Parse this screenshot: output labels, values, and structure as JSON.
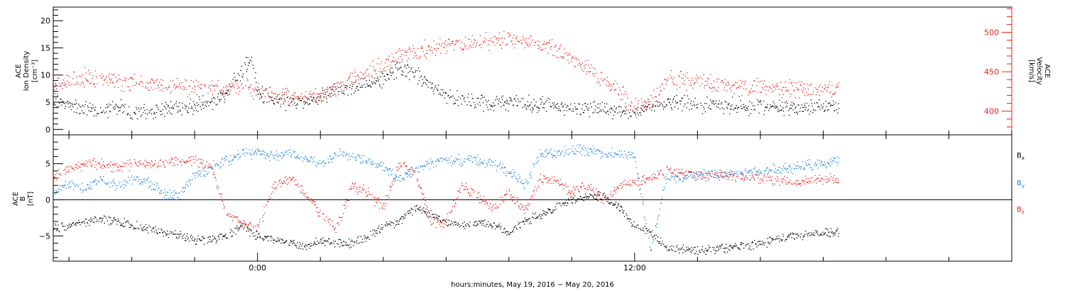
{
  "figure": {
    "xlabel": "hours:minutes, May 19, 2016 − May 20, 2016",
    "x_range_hours": [
      -6.5,
      24
    ],
    "x_major_ticks": [
      {
        "label": "0:00",
        "hour": 0
      },
      {
        "label": "12:00",
        "hour": 12
      }
    ]
  },
  "chart_data": [
    {
      "type": "scatter",
      "panel": "top",
      "ylabel_left": [
        "ACE",
        "Ion Density",
        "[cm⁻³]"
      ],
      "ylabel_right": [
        "ACE",
        "Velocity",
        "[km/s]"
      ],
      "ylim_left": [
        -1,
        22.5
      ],
      "ylim_right": [
        370,
        532
      ],
      "yticks_left": [
        0,
        5,
        10,
        15,
        20
      ],
      "yticks_right": [
        400,
        450,
        500
      ],
      "series": [
        {
          "axis": "left",
          "color": "#000000",
          "x": [
            -6.5,
            -6.0,
            -5.5,
            -5.0,
            -4.5,
            -4.0,
            -3.5,
            -3.0,
            -2.5,
            -2.0,
            -1.5,
            -1.0,
            -0.5,
            -0.2,
            0.0,
            0.5,
            1.0,
            1.5,
            2.0,
            2.5,
            3.0,
            3.5,
            4.0,
            4.5,
            5.0,
            5.5,
            6.0,
            6.5,
            7.0,
            7.5,
            8.0,
            8.5,
            9.0,
            9.5,
            10.0,
            10.5,
            11.0,
            11.5,
            12.0,
            12.5,
            13.0,
            14.0,
            15.0,
            16.0,
            17.0,
            18.0,
            18.5
          ],
          "y": [
            6.0,
            4.5,
            4.0,
            3.5,
            4.0,
            3.5,
            3.5,
            4.0,
            4.0,
            4.5,
            5.0,
            6.5,
            11.0,
            13.0,
            7.0,
            5.5,
            5.0,
            5.0,
            6.0,
            7.0,
            7.5,
            8.5,
            9.5,
            11.0,
            10.5,
            8.0,
            6.0,
            5.5,
            5.0,
            5.0,
            5.0,
            5.0,
            4.5,
            4.5,
            4.0,
            4.0,
            4.0,
            3.5,
            3.5,
            4.0,
            5.0,
            4.5,
            4.5,
            4.3,
            4.2,
            4.3,
            4.5
          ]
        },
        {
          "axis": "right",
          "color": "#e8201a",
          "x": [
            -6.5,
            -6.0,
            -5.5,
            -5.0,
            -4.5,
            -4.0,
            -3.5,
            -3.0,
            -2.5,
            -2.0,
            -1.5,
            -1.0,
            -0.5,
            0.0,
            0.5,
            1.0,
            1.5,
            2.0,
            2.5,
            3.0,
            3.5,
            4.0,
            4.5,
            5.0,
            5.5,
            6.0,
            6.5,
            7.0,
            7.5,
            8.0,
            8.5,
            9.0,
            9.5,
            10.0,
            10.5,
            11.0,
            11.5,
            12.0,
            12.5,
            13.0,
            14.0,
            15.0,
            16.0,
            17.0,
            18.0,
            18.5
          ],
          "y": [
            430,
            440,
            443,
            440,
            437,
            437,
            433,
            432,
            430,
            430,
            428,
            430,
            432,
            425,
            420,
            420,
            418,
            422,
            430,
            440,
            450,
            460,
            470,
            475,
            480,
            485,
            485,
            488,
            490,
            492,
            490,
            485,
            478,
            465,
            455,
            440,
            425,
            405,
            410,
            440,
            438,
            433,
            430,
            428,
            427,
            426
          ]
        }
      ]
    },
    {
      "type": "scatter",
      "panel": "bottom",
      "ylabel_left": [
        "ACE",
        "B",
        "[nT]"
      ],
      "ylim": [
        -8.5,
        9.0
      ],
      "yticks": [
        -5,
        0,
        5
      ],
      "legend": [
        {
          "label": "B",
          "sub": "x",
          "color": "#000000"
        },
        {
          "label": "B",
          "sub": "y",
          "color": "#1a84e0"
        },
        {
          "label": "B",
          "sub": "z",
          "color": "#e8201a"
        }
      ],
      "series": [
        {
          "name": "Bx",
          "color": "#000000",
          "x": [
            -6.5,
            -6.0,
            -5.5,
            -5.0,
            -4.5,
            -4.0,
            -3.5,
            -3.0,
            -2.5,
            -2.0,
            -1.5,
            -1.0,
            -0.5,
            0.0,
            0.5,
            1.0,
            1.5,
            2.0,
            2.5,
            3.0,
            3.5,
            4.0,
            4.5,
            5.0,
            5.5,
            6.0,
            6.5,
            7.0,
            7.5,
            8.0,
            8.5,
            9.0,
            9.5,
            10.0,
            10.5,
            11.0,
            11.5,
            12.0,
            12.5,
            13.0,
            14.0,
            15.0,
            16.0,
            17.0,
            18.0,
            18.5
          ],
          "y": [
            -4.0,
            -3.5,
            -3.0,
            -2.5,
            -3.0,
            -3.5,
            -4.0,
            -4.5,
            -5.0,
            -5.5,
            -5.5,
            -5.0,
            -3.5,
            -5.0,
            -5.5,
            -6.0,
            -6.5,
            -5.5,
            -6.0,
            -6.0,
            -5.0,
            -3.5,
            -3.0,
            -1.0,
            -2.0,
            -3.0,
            -3.5,
            -3.0,
            -3.5,
            -4.5,
            -3.0,
            -2.0,
            -1.0,
            0.0,
            0.5,
            0.5,
            -1.0,
            -3.5,
            -4.5,
            -6.5,
            -7.0,
            -6.5,
            -6.0,
            -5.0,
            -4.5,
            -4.5
          ]
        },
        {
          "name": "By",
          "color": "#1a84e0",
          "x": [
            -6.5,
            -6.0,
            -5.5,
            -5.0,
            -4.5,
            -4.0,
            -3.5,
            -3.0,
            -2.5,
            -2.0,
            -1.5,
            -1.0,
            -0.5,
            0.0,
            0.5,
            1.0,
            1.5,
            2.0,
            2.5,
            3.0,
            3.5,
            4.0,
            4.5,
            5.0,
            5.5,
            6.0,
            6.5,
            7.0,
            7.5,
            8.0,
            8.5,
            9.0,
            9.5,
            10.0,
            10.5,
            11.0,
            11.5,
            12.0,
            12.5,
            13.0,
            14.0,
            15.0,
            16.0,
            17.0,
            18.0,
            18.5
          ],
          "y": [
            1.0,
            2.5,
            1.5,
            3.0,
            2.0,
            3.0,
            2.5,
            1.0,
            0.5,
            3.5,
            4.5,
            5.5,
            6.5,
            6.5,
            6.0,
            6.5,
            6.0,
            5.0,
            6.5,
            6.0,
            5.5,
            4.5,
            3.0,
            4.0,
            5.0,
            5.5,
            5.5,
            5.5,
            5.0,
            4.0,
            2.0,
            6.5,
            6.5,
            7.0,
            7.0,
            6.5,
            6.5,
            6.0,
            -7.0,
            3.0,
            3.5,
            3.5,
            4.0,
            4.5,
            5.0,
            5.5
          ]
        },
        {
          "name": "Bz",
          "color": "#e8201a",
          "x": [
            -6.5,
            -6.0,
            -5.5,
            -5.0,
            -4.5,
            -4.0,
            -3.5,
            -3.0,
            -2.5,
            -2.0,
            -1.5,
            -1.0,
            -0.5,
            0.0,
            0.5,
            1.0,
            1.5,
            2.0,
            2.5,
            3.0,
            3.5,
            4.0,
            4.5,
            5.0,
            5.5,
            6.0,
            6.5,
            7.0,
            7.5,
            8.0,
            8.5,
            9.0,
            9.5,
            10.0,
            10.5,
            11.0,
            11.5,
            12.0,
            12.5,
            13.0,
            14.0,
            15.0,
            16.0,
            17.0,
            18.0,
            18.5
          ],
          "y": [
            3.0,
            4.5,
            5.0,
            5.0,
            4.5,
            5.0,
            5.0,
            5.0,
            5.5,
            5.5,
            5.0,
            -2.0,
            -3.0,
            -4.0,
            2.0,
            3.0,
            1.0,
            -2.0,
            -4.0,
            2.0,
            1.0,
            -1.0,
            5.0,
            4.0,
            -3.0,
            -3.0,
            2.0,
            0.5,
            -1.0,
            1.0,
            -1.5,
            3.0,
            2.5,
            1.0,
            2.0,
            0.0,
            2.0,
            2.5,
            3.0,
            4.0,
            3.5,
            3.5,
            3.0,
            2.5,
            3.0,
            3.0
          ]
        }
      ]
    }
  ]
}
